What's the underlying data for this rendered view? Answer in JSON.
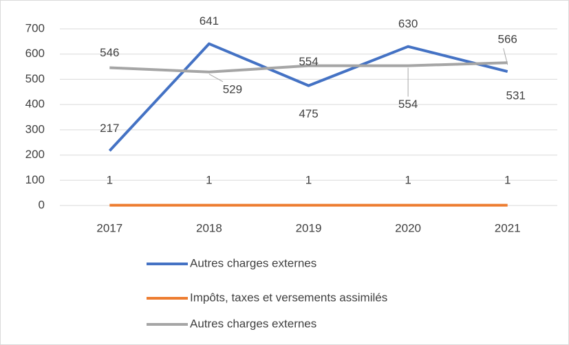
{
  "chart_data": {
    "type": "line",
    "categories": [
      "2017",
      "2018",
      "2019",
      "2020",
      "2021"
    ],
    "series": [
      {
        "name": "Autres charges externes",
        "color": "#4472c4",
        "values": [
          217,
          641,
          475,
          630,
          531
        ]
      },
      {
        "name": "Impôts, taxes et versements assimilés",
        "color": "#ed7d31",
        "values": [
          1,
          1,
          1,
          1,
          1
        ]
      },
      {
        "name": "Autres charges externes",
        "color": "#a5a5a5",
        "values": [
          546,
          529,
          554,
          554,
          566
        ]
      }
    ],
    "ylim": [
      0,
      700
    ],
    "yticks": [
      0,
      100,
      200,
      300,
      400,
      500,
      600,
      700
    ],
    "grid": true,
    "legend": "bottom"
  }
}
